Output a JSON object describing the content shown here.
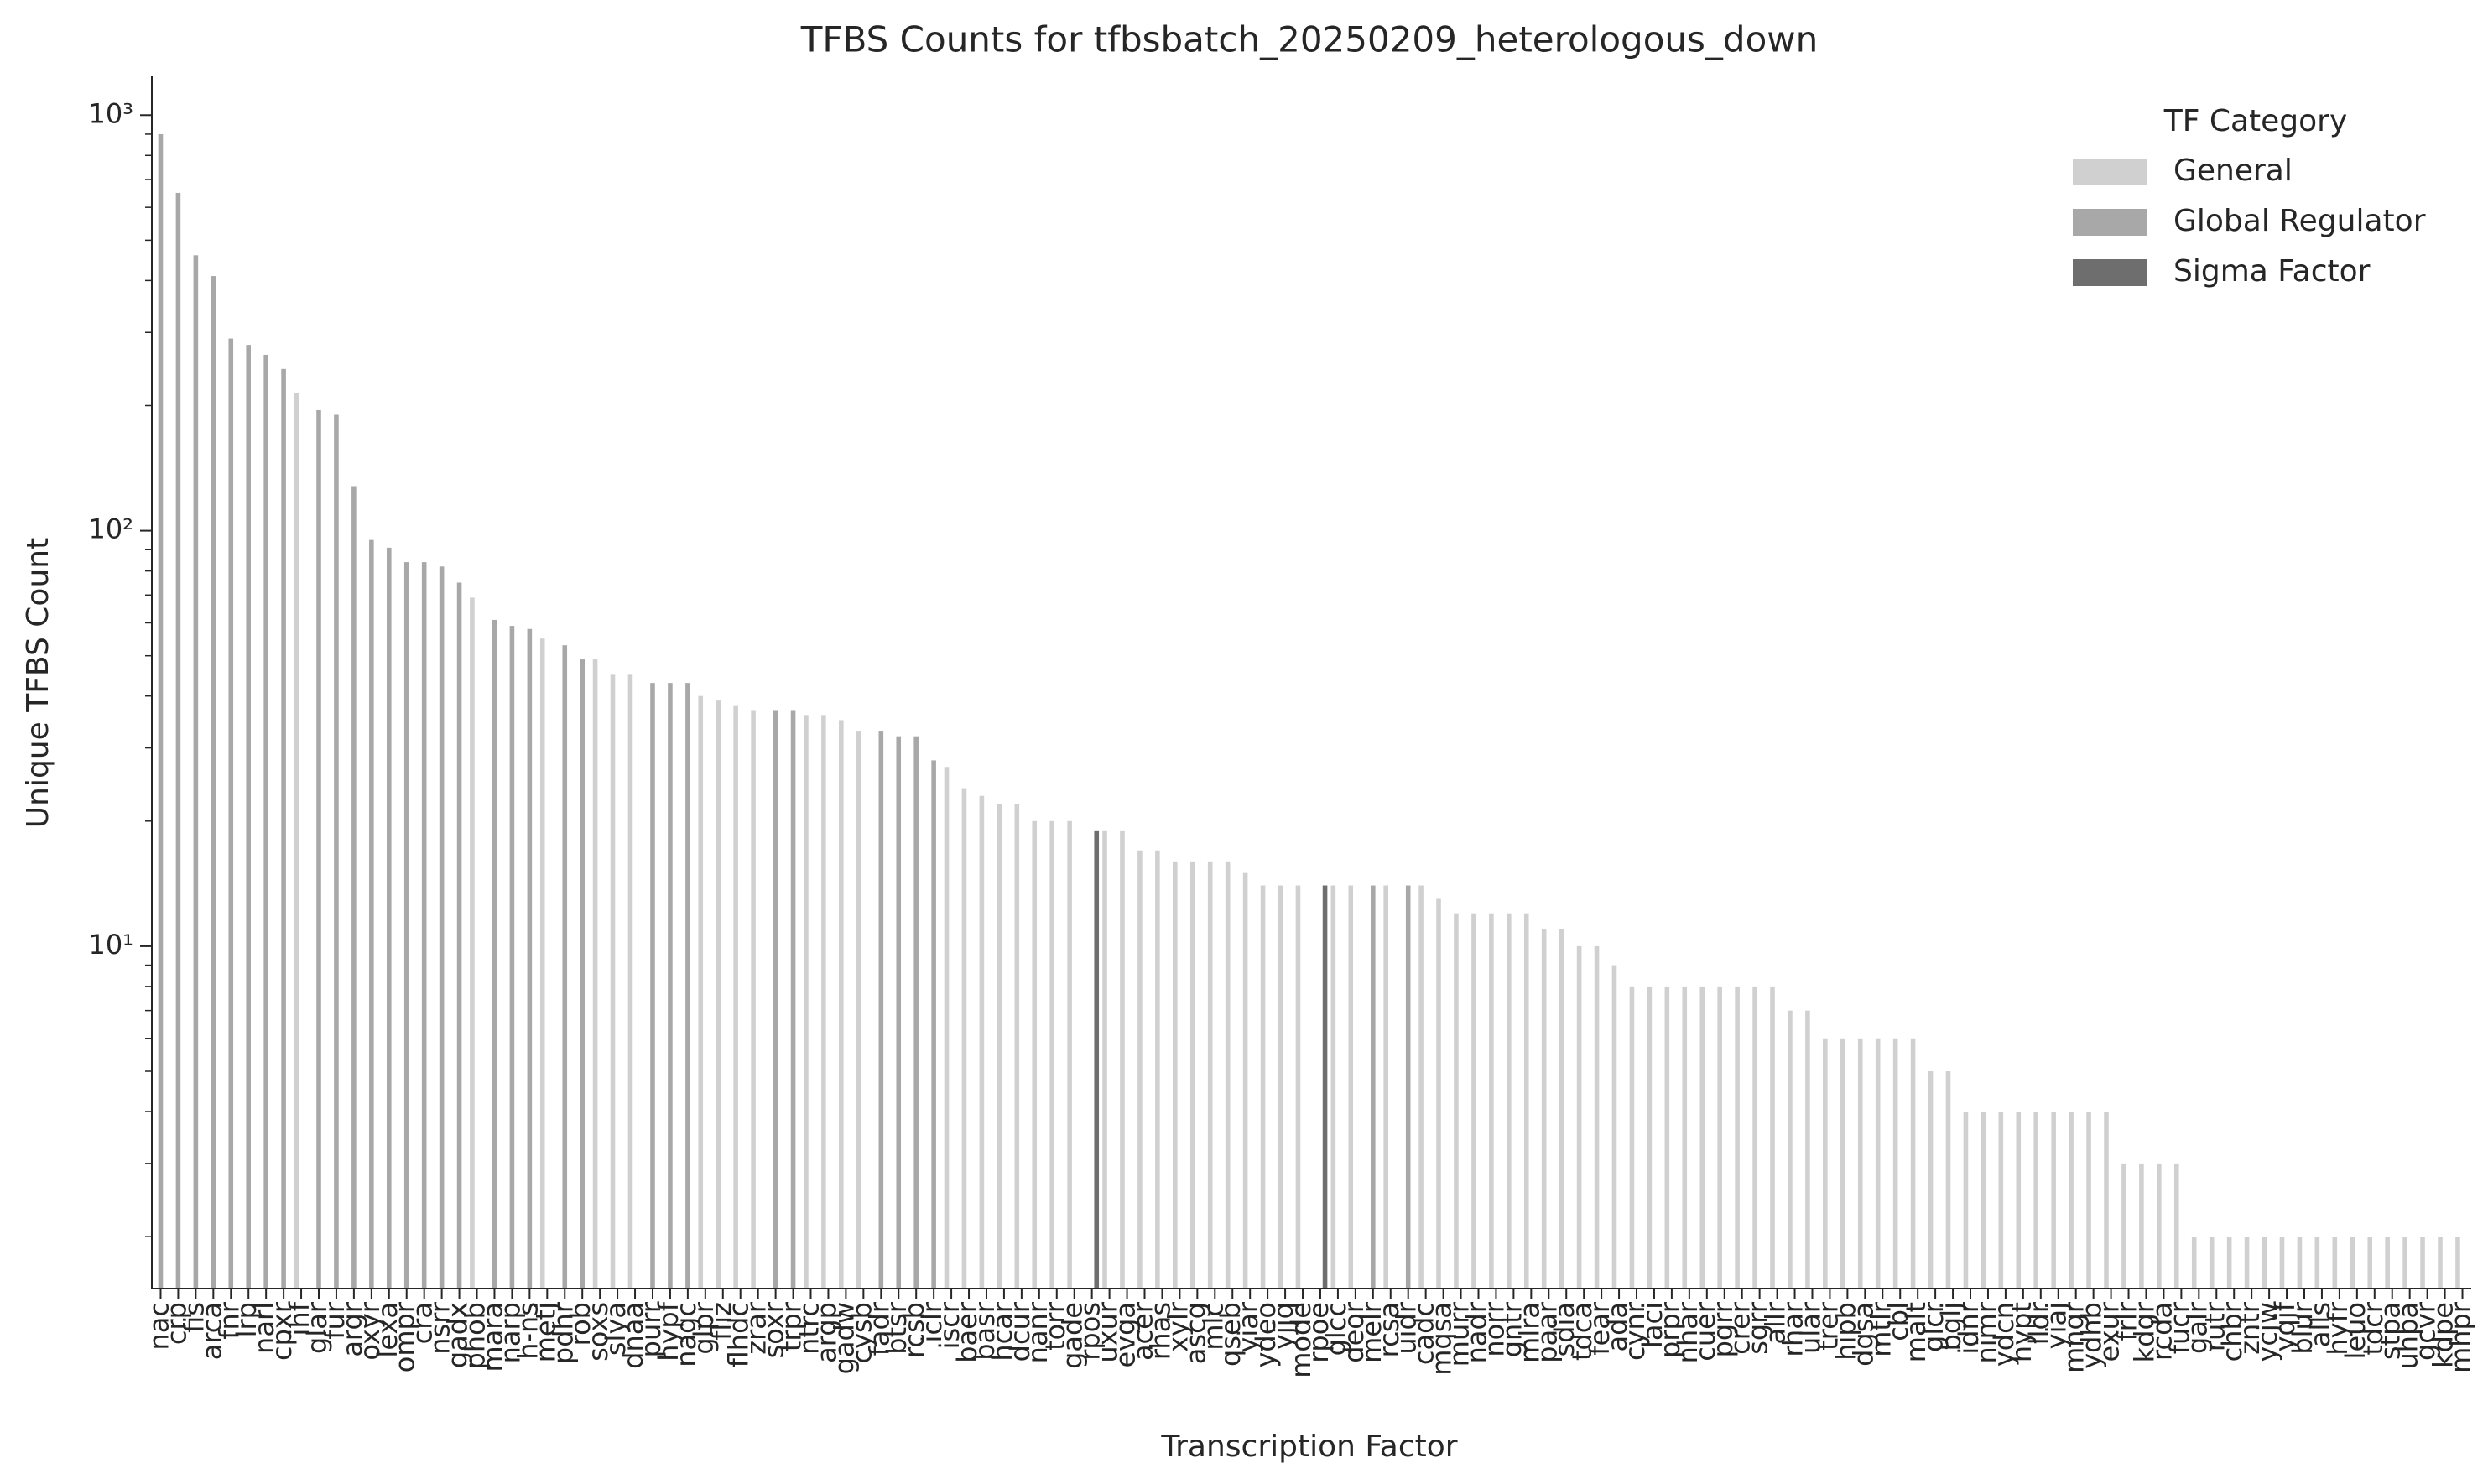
{
  "chart_data": {
    "type": "bar",
    "title": "TFBS Counts for tfbsbatch_20250209_heterologous_down",
    "x_label": "Transcription Factor",
    "y_label": "Unique TFBS Count",
    "log_scale": true,
    "legend_title": "TF Category",
    "legend_position": "upper right",
    "ylim": [
      1.5,
      1240
    ],
    "yticks": [
      {
        "value": 10,
        "label": "10¹"
      },
      {
        "value": 100,
        "label": "10²"
      },
      {
        "value": 1000,
        "label": "10³"
      }
    ],
    "yminorticks": [
      2,
      3,
      4,
      5,
      6,
      7,
      8,
      9,
      20,
      30,
      40,
      50,
      60,
      70,
      80,
      90,
      200,
      300,
      400,
      500,
      600,
      700,
      800,
      900
    ],
    "categories": [
      "nac",
      "crp",
      "fis",
      "arca",
      "fnr",
      "lrp",
      "narl",
      "cpxr",
      "ihf",
      "glar",
      "fur",
      "argr",
      "oxyr",
      "lexa",
      "ompr",
      "cra",
      "nsrr",
      "gadx",
      "phob",
      "mara",
      "narp",
      "h-ns",
      "metj",
      "pdhr",
      "rob",
      "soxs",
      "slya",
      "dnaa",
      "purr",
      "hypf",
      "nagc",
      "glpr",
      "fliz",
      "flhdc",
      "zrar",
      "soxr",
      "trpr",
      "ntrc",
      "argp",
      "gadw",
      "cysb",
      "fadr",
      "btsr",
      "rcsb",
      "iclr",
      "iscr",
      "baer",
      "basr",
      "hcar",
      "dcur",
      "nanr",
      "torr",
      "gade",
      "rpos",
      "uxur",
      "evga",
      "acer",
      "rhas",
      "xylr",
      "ascg",
      "mlc",
      "qseb",
      "yiar",
      "ydeo",
      "yjjq",
      "mode",
      "rpoe",
      "glcc",
      "deor",
      "melr",
      "rcsa",
      "uidr",
      "cadc",
      "mqsa",
      "murr",
      "nadr",
      "norr",
      "gntr",
      "mlra",
      "paar",
      "sdia",
      "tdca",
      "fear",
      "ada",
      "cynr",
      "laci",
      "prpr",
      "nhar",
      "cuer",
      "pgrr",
      "crer",
      "sgrr",
      "allr",
      "rhar",
      "ular",
      "trer",
      "hipb",
      "dgsa",
      "mtlr",
      "cbl",
      "malt",
      "glcr",
      "bglj",
      "idnr",
      "nimr",
      "ydcn",
      "hypt",
      "lldr",
      "yiaj",
      "mngr",
      "ydhb",
      "exur",
      "frlr",
      "kdgr",
      "rcda",
      "fucr",
      "galr",
      "rutr",
      "chbr",
      "zntr",
      "ycjw",
      "yqjf",
      "blur",
      "alls",
      "hyfr",
      "leuo",
      "tdcr",
      "stpa",
      "uhpa",
      "gcvr",
      "kdpe",
      "mhpr"
    ],
    "series": [
      {
        "name": "General",
        "color": "#d0d0d0",
        "values": [
          null,
          null,
          null,
          null,
          null,
          null,
          null,
          null,
          215,
          null,
          null,
          null,
          null,
          null,
          null,
          null,
          null,
          null,
          69,
          null,
          null,
          null,
          55,
          null,
          null,
          49,
          45,
          45,
          null,
          null,
          null,
          40,
          39,
          38,
          37,
          null,
          null,
          36,
          36,
          35,
          33,
          null,
          null,
          null,
          null,
          27,
          24,
          23,
          22,
          22,
          20,
          20,
          20,
          null,
          19,
          19,
          17,
          17,
          16,
          16,
          16,
          16,
          15,
          14,
          14,
          14,
          null,
          14,
          14,
          null,
          14,
          null,
          14,
          13,
          12,
          12,
          12,
          12,
          12,
          11,
          11,
          10,
          10,
          9,
          8,
          8,
          8,
          8,
          8,
          8,
          8,
          8,
          8,
          7,
          7,
          6,
          6,
          6,
          6,
          6,
          6,
          5,
          5,
          4,
          4,
          4,
          4,
          4,
          4,
          4,
          4,
          4,
          3,
          3,
          3,
          3,
          2,
          2,
          2,
          2,
          2,
          2,
          2,
          2,
          2,
          2,
          2,
          2,
          2,
          2,
          2,
          2
        ]
      },
      {
        "name": "Global Regulator",
        "color": "#a8a8a8",
        "values": [
          900,
          650,
          460,
          410,
          290,
          280,
          265,
          245,
          null,
          195,
          190,
          128,
          95,
          91,
          84,
          84,
          82,
          75,
          null,
          61,
          59,
          58,
          null,
          53,
          49,
          null,
          null,
          null,
          43,
          43,
          43,
          null,
          null,
          null,
          null,
          37,
          37,
          null,
          null,
          null,
          null,
          33,
          32,
          32,
          28,
          null,
          null,
          null,
          null,
          null,
          null,
          null,
          null,
          null,
          null,
          null,
          null,
          null,
          null,
          null,
          null,
          null,
          null,
          null,
          null,
          null,
          null,
          null,
          null,
          14,
          null,
          14,
          null,
          null,
          null,
          null,
          null,
          null,
          null,
          null,
          null,
          null,
          null,
          null,
          null,
          null,
          null,
          null,
          null,
          null,
          null,
          null,
          null,
          null,
          null,
          null,
          null,
          null,
          null,
          null,
          null,
          null,
          null,
          null,
          null,
          null,
          null,
          null,
          null,
          null,
          null,
          null,
          null,
          null,
          null,
          null,
          null,
          null,
          null,
          null,
          null,
          null,
          null,
          null,
          null,
          null,
          null,
          null,
          null,
          null,
          null,
          null
        ]
      },
      {
        "name": "Sigma Factor",
        "color": "#6e6e6e",
        "values": [
          null,
          null,
          null,
          null,
          null,
          null,
          null,
          null,
          null,
          null,
          null,
          null,
          null,
          null,
          null,
          null,
          null,
          null,
          null,
          null,
          null,
          null,
          null,
          null,
          null,
          null,
          null,
          null,
          null,
          null,
          null,
          null,
          null,
          null,
          null,
          null,
          null,
          null,
          null,
          null,
          null,
          null,
          null,
          null,
          null,
          null,
          null,
          null,
          null,
          null,
          null,
          null,
          null,
          19,
          null,
          null,
          null,
          null,
          null,
          null,
          null,
          null,
          null,
          null,
          null,
          null,
          14,
          null,
          null,
          null,
          null,
          null,
          null,
          null,
          null,
          null,
          null,
          null,
          null,
          null,
          null,
          null,
          null,
          null,
          null,
          null,
          null,
          null,
          null,
          null,
          null,
          null,
          null,
          null,
          null,
          null,
          null,
          null,
          null,
          null,
          null,
          null,
          null,
          null,
          null,
          null,
          null,
          null,
          null,
          null,
          null,
          null,
          null,
          null,
          null,
          null,
          null,
          null,
          null,
          null,
          null,
          null,
          null,
          null,
          null,
          null,
          null,
          null,
          null,
          null,
          null,
          null
        ]
      }
    ]
  }
}
